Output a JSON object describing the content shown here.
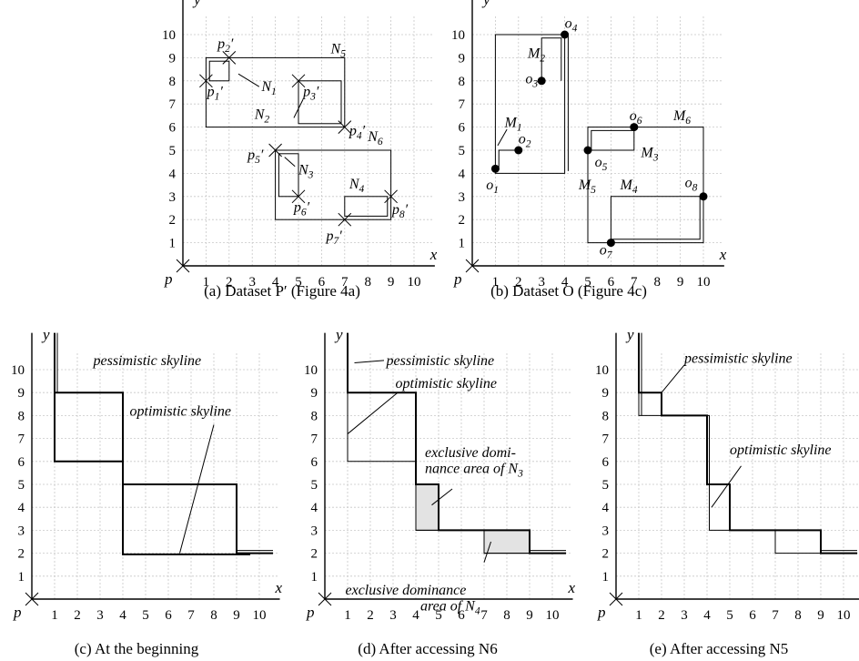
{
  "axes": {
    "x": "x",
    "y": "y",
    "origin": "p",
    "ticks": [
      "1",
      "2",
      "3",
      "4",
      "5",
      "6",
      "7",
      "8",
      "9",
      "10"
    ]
  },
  "panels": {
    "a": {
      "caption": "(a) Dataset P′ (Figure 4a)",
      "points": [
        [
          "p",
          "1",
          "′"
        ],
        [
          "p",
          "2",
          "′"
        ],
        [
          "p",
          "3",
          "′"
        ],
        [
          "p",
          "4",
          "′"
        ],
        [
          "p",
          "5",
          "′"
        ],
        [
          "p",
          "6",
          "′"
        ],
        [
          "p",
          "7",
          "′"
        ],
        [
          "p",
          "8",
          "′"
        ]
      ],
      "nodes": [
        [
          "N",
          "1"
        ],
        [
          "N",
          "2"
        ],
        [
          "N",
          "3"
        ],
        [
          "N",
          "4"
        ],
        [
          "N",
          "5"
        ],
        [
          "N",
          "6"
        ]
      ]
    },
    "b": {
      "caption": "(b) Dataset O (Figure 4c)",
      "points": [
        [
          "o",
          "1"
        ],
        [
          "o",
          "2"
        ],
        [
          "o",
          "3"
        ],
        [
          "o",
          "4"
        ],
        [
          "o",
          "5"
        ],
        [
          "o",
          "6"
        ],
        [
          "o",
          "7"
        ],
        [
          "o",
          "8"
        ]
      ],
      "nodes": [
        [
          "M",
          "1"
        ],
        [
          "M",
          "2"
        ],
        [
          "M",
          "3"
        ],
        [
          "M",
          "4"
        ],
        [
          "M",
          "5"
        ],
        [
          "M",
          "6"
        ]
      ]
    },
    "c": {
      "caption": "(c) At the beginning",
      "labels": [
        "pessimistic skyline",
        "optimistic skyline"
      ]
    },
    "d": {
      "caption": "(d) After accessing N6",
      "labels": [
        "pessimistic skyline",
        "optimistic skyline"
      ],
      "area1": [
        "exclusive domi-",
        "nance area of N",
        "3"
      ],
      "area2": [
        "exclusive dominance",
        "area of N",
        "4"
      ]
    },
    "e": {
      "caption": "(e) After accessing N5",
      "labels": [
        "pessimistic skyline",
        "optimistic skyline"
      ]
    }
  },
  "colors": {
    "shade": "#e3e3e3",
    "grid": "#c8c8c8"
  }
}
